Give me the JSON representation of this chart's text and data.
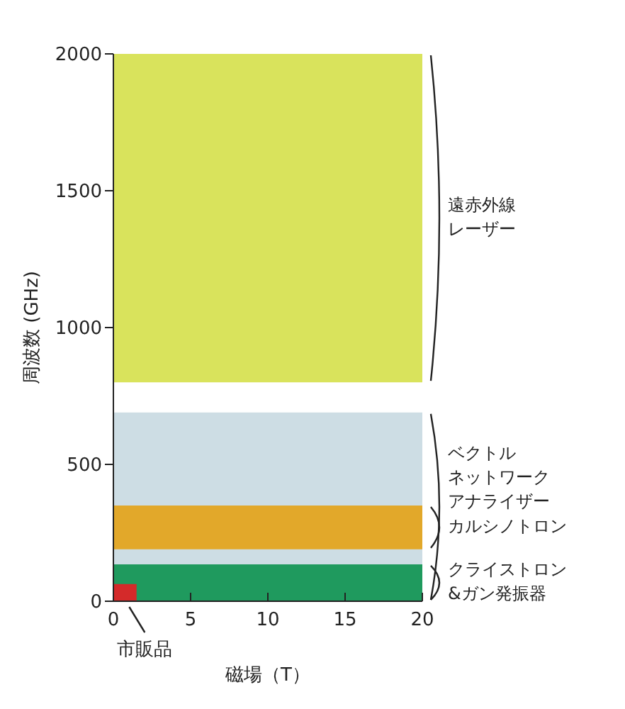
{
  "chart_data": {
    "type": "area",
    "xlabel": "磁場（T）",
    "ylabel": "周波数 (GHz)",
    "xlim": [
      0,
      20
    ],
    "ylim": [
      0,
      2000
    ],
    "xticks": [
      0,
      5,
      10,
      15,
      20
    ],
    "yticks": [
      0,
      500,
      1000,
      1500,
      2000
    ],
    "series": [
      {
        "name": "市販品",
        "color": "#d42a2a",
        "x": [
          0,
          1.5
        ],
        "values": [
          60,
          60
        ]
      }
    ],
    "bands": [
      {
        "axis": "y",
        "from": 800,
        "to": 2000,
        "label": "遠赤外線レーザー",
        "color": "#d9e35c"
      },
      {
        "axis": "y",
        "from": 0,
        "to": 690,
        "label": "ベクトルネットワークアナライザー",
        "color": "#cddde4"
      },
      {
        "axis": "y",
        "from": 190,
        "to": 350,
        "label": "カルシノトロン",
        "color": "#e2a82a"
      },
      {
        "axis": "y",
        "from": 0,
        "to": 135,
        "label": "クライストロン&ガン発振器",
        "color": "#1f9a5e"
      }
    ]
  }
}
